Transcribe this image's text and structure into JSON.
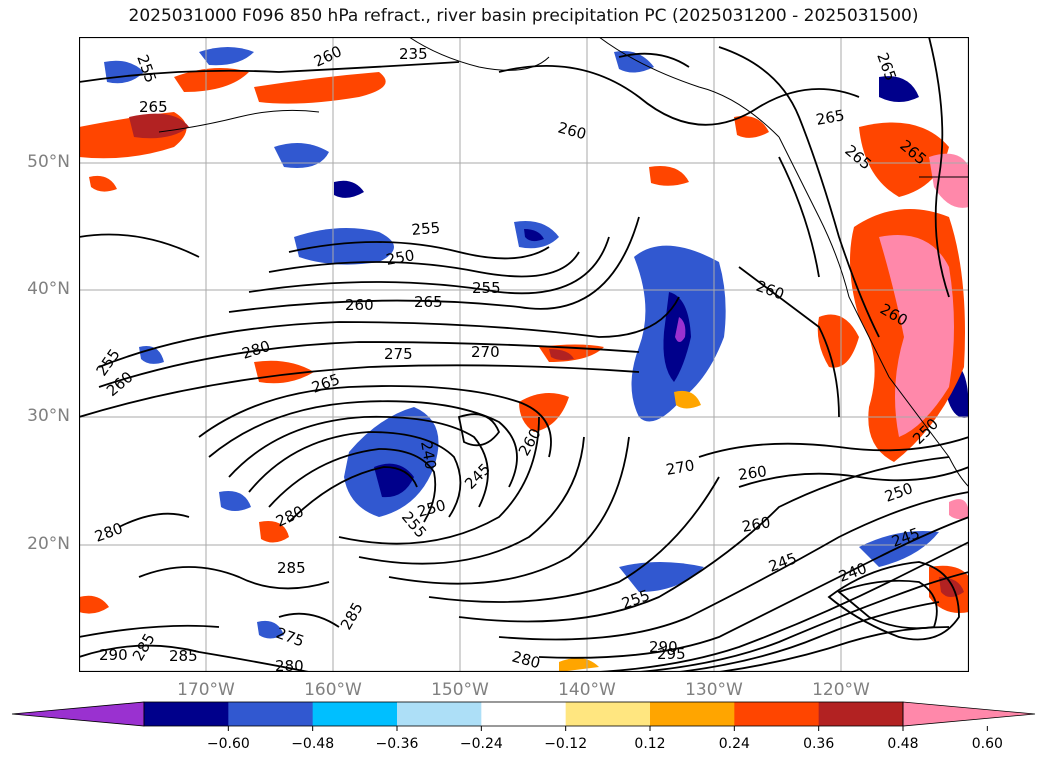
{
  "title": "2025031000 F096 850 hPa refract., river basin precipitation PC (2025031200 - 2025031500)",
  "map": {
    "lat_labels": [
      "50°N",
      "40°N",
      "30°N",
      "20°N"
    ],
    "lon_labels": [
      "170°W",
      "160°W",
      "150°W",
      "140°W",
      "130°W",
      "120°W"
    ],
    "contour_labels": [
      "255",
      "235",
      "265",
      "260",
      "265",
      "260",
      "250",
      "255",
      "260",
      "265",
      "255",
      "260",
      "280",
      "275",
      "270",
      "255",
      "260",
      "265",
      "240",
      "245",
      "250",
      "255",
      "260",
      "270",
      "260",
      "250",
      "260",
      "245",
      "240",
      "245",
      "255",
      "280",
      "280",
      "285",
      "285",
      "275",
      "280",
      "290",
      "285",
      "285",
      "290",
      "295",
      "280",
      "265",
      "265",
      "260",
      "265",
      "250"
    ]
  },
  "colorbar": {
    "tick_labels": [
      "−0.60",
      "−0.48",
      "−0.36",
      "−0.24",
      "−0.12",
      "0.12",
      "0.24",
      "0.36",
      "0.48",
      "0.60"
    ],
    "colors": [
      "#9a31d0",
      "#00008b",
      "#3158d0",
      "#00bfff",
      "#addff7",
      "#ffffff",
      "#ffe680",
      "#ffa500",
      "#ff4500",
      "#b22222",
      "#ff88aa"
    ]
  }
}
